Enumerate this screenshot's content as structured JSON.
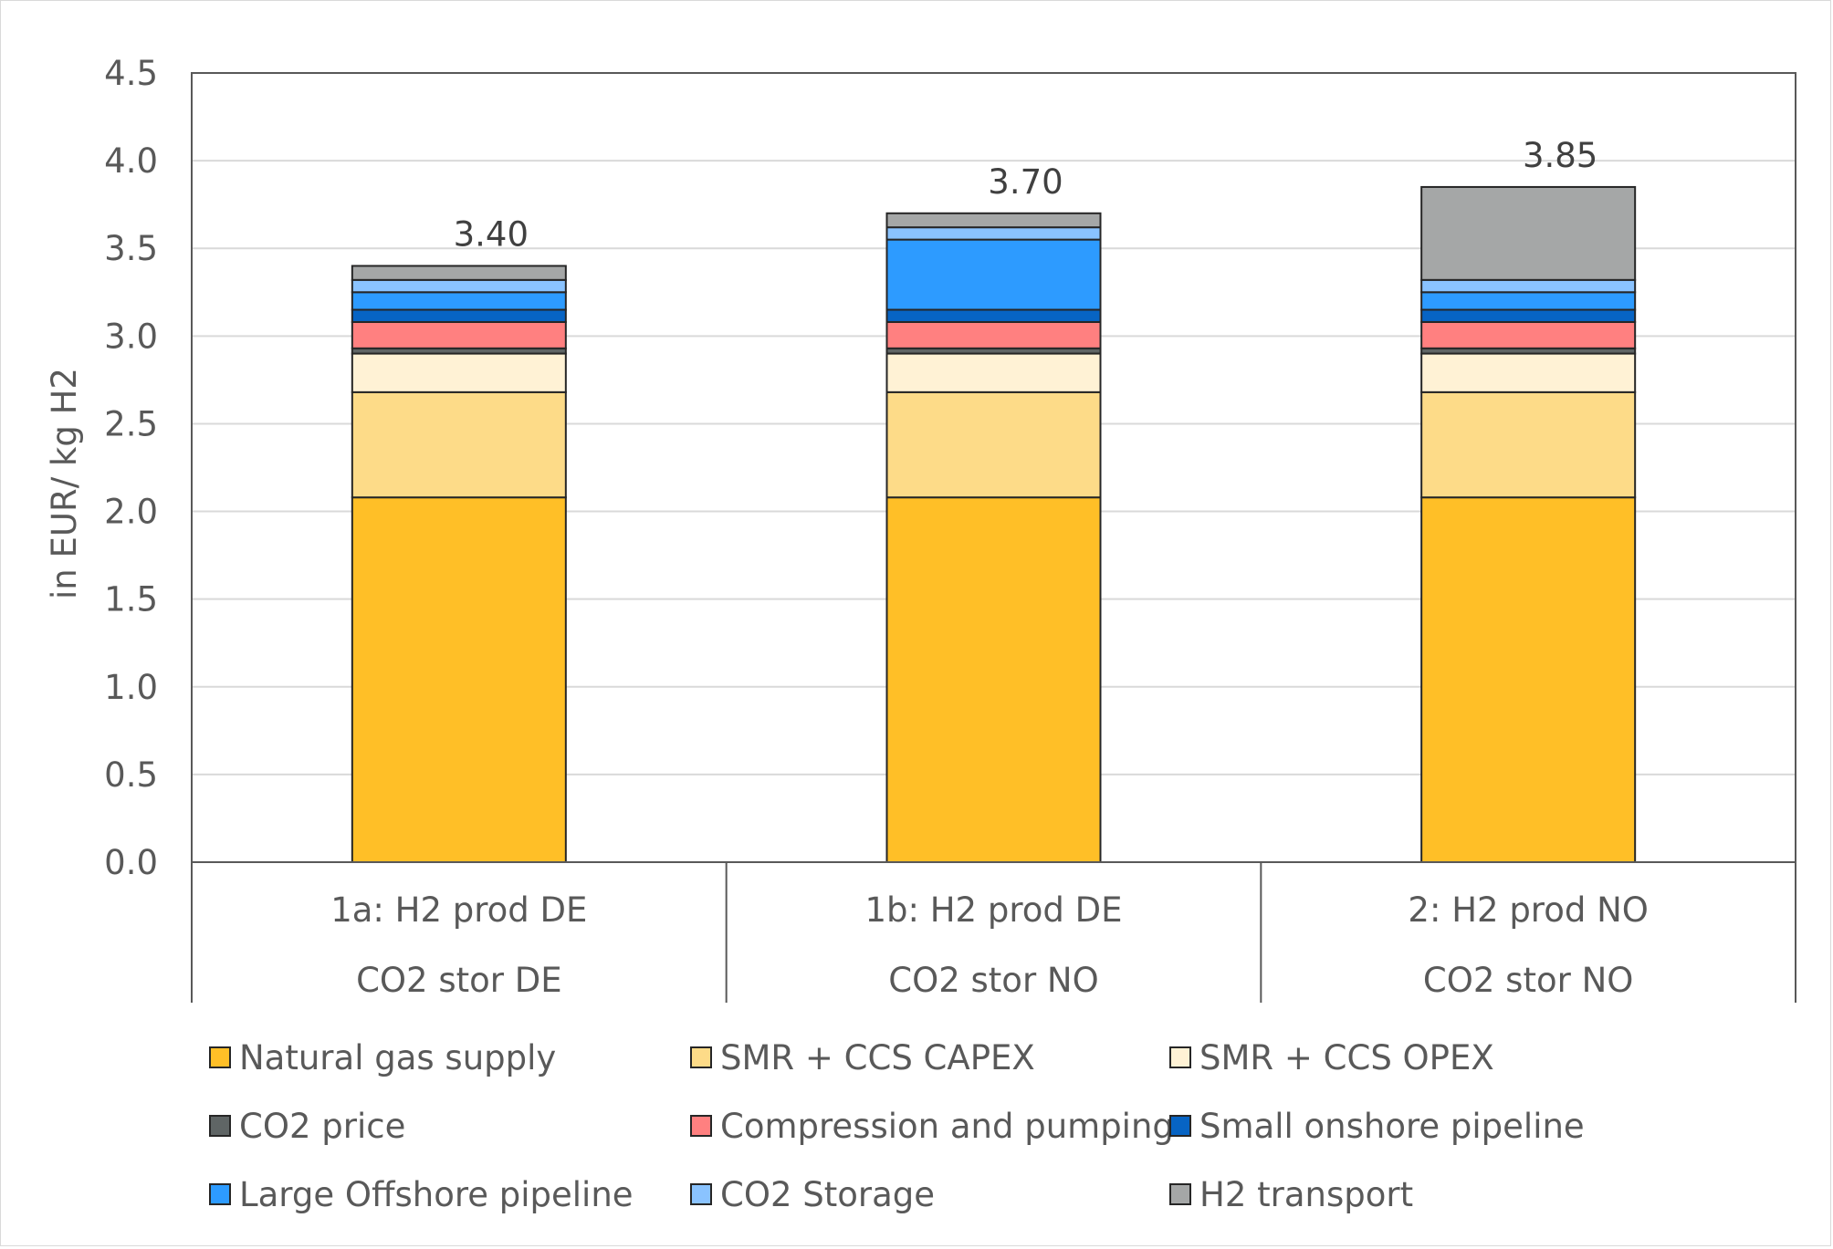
{
  "chart_data": {
    "type": "bar",
    "stacked": true,
    "ylabel": "in EUR/ kg H2",
    "ylim": [
      0,
      4.5
    ],
    "yticks": [
      "0.0",
      "0.5",
      "1.0",
      "1.5",
      "2.0",
      "2.5",
      "3.0",
      "3.5",
      "4.0",
      "4.5"
    ],
    "grid": true,
    "legend_position": "bottom",
    "categories": [
      {
        "line1": "1a: H2 prod DE",
        "line2": "CO2 stor DE"
      },
      {
        "line1": "1b: H2 prod DE",
        "line2": "CO2 stor NO"
      },
      {
        "line1": "2: H2 prod NO",
        "line2": "CO2 stor NO"
      }
    ],
    "totals": [
      "3.40",
      "3.70",
      "3.85"
    ],
    "series": [
      {
        "name": "Natural gas supply",
        "color": "#FFBF27",
        "values": [
          2.08,
          2.08,
          2.08
        ]
      },
      {
        "name": "SMR + CCS CAPEX",
        "color": "#FDDB88",
        "values": [
          0.6,
          0.6,
          0.6
        ]
      },
      {
        "name": "SMR + CCS OPEX",
        "color": "#FFF2D5",
        "values": [
          0.22,
          0.22,
          0.22
        ]
      },
      {
        "name": "CO2 price",
        "color": "#5F6565",
        "values": [
          0.03,
          0.03,
          0.03
        ]
      },
      {
        "name": "Compression and pumping",
        "color": "#FF8080",
        "values": [
          0.15,
          0.15,
          0.15
        ]
      },
      {
        "name": "Small onshore pipeline",
        "color": "#0764C4",
        "values": [
          0.07,
          0.07,
          0.07
        ]
      },
      {
        "name": "Large Offshore pipeline",
        "color": "#2D9BFF",
        "values": [
          0.1,
          0.4,
          0.1
        ]
      },
      {
        "name": "CO2 Storage",
        "color": "#8AC3FF",
        "values": [
          0.07,
          0.07,
          0.07
        ]
      },
      {
        "name": "H2 transport",
        "color": "#A5A7A7",
        "values": [
          0.08,
          0.08,
          0.53
        ]
      }
    ]
  }
}
